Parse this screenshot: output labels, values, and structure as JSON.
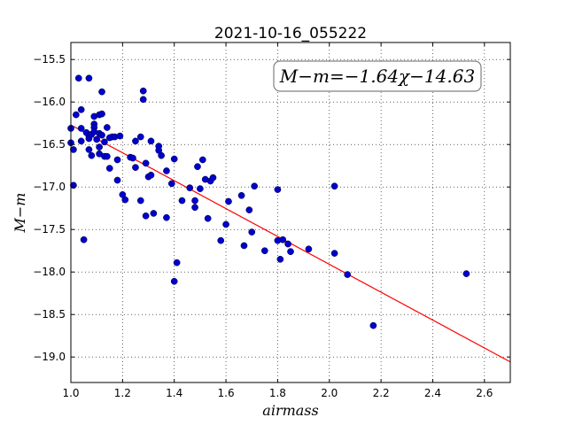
{
  "chart_data": {
    "type": "scatter",
    "title": "2021-10-16_055222",
    "xlabel": "airmass",
    "ylabel": "M−m",
    "xlim": [
      1.0,
      2.7
    ],
    "ylim": [
      -19.3,
      -15.3
    ],
    "y_inverted": true,
    "grid": true,
    "grid_style": "dotted",
    "xticks": [
      1.0,
      1.2,
      1.4,
      1.6,
      1.8,
      2.0,
      2.2,
      2.4,
      2.6
    ],
    "xtick_labels": [
      "1.0",
      "1.2",
      "1.4",
      "1.6",
      "1.8",
      "2.0",
      "2.2",
      "2.4",
      "2.6"
    ],
    "yticks": [
      -15.5,
      -16.0,
      -16.5,
      -17.0,
      -17.5,
      -18.0,
      -18.5,
      -19.0
    ],
    "ytick_labels": [
      "−15.5",
      "−16.0",
      "−16.5",
      "−17.0",
      "−17.5",
      "−18.0",
      "−18.5",
      "−19.0"
    ],
    "annotation": "M−m=−1.64χ−14.63",
    "fit": {
      "slope": -1.64,
      "intercept": -14.63,
      "color": "#ff0000"
    },
    "point_color": "#0000cc",
    "points": [
      [
        1.0,
        -16.31
      ],
      [
        1.0,
        -16.48
      ],
      [
        1.01,
        -16.56
      ],
      [
        1.01,
        -16.98
      ],
      [
        1.02,
        -16.15
      ],
      [
        1.03,
        -15.72
      ],
      [
        1.04,
        -16.09
      ],
      [
        1.04,
        -16.31
      ],
      [
        1.04,
        -16.46
      ],
      [
        1.05,
        -17.62
      ],
      [
        1.06,
        -16.36
      ],
      [
        1.07,
        -15.72
      ],
      [
        1.07,
        -16.4
      ],
      [
        1.07,
        -16.43
      ],
      [
        1.07,
        -16.56
      ],
      [
        1.08,
        -16.38
      ],
      [
        1.08,
        -16.63
      ],
      [
        1.09,
        -16.17
      ],
      [
        1.09,
        -16.26
      ],
      [
        1.09,
        -16.3
      ],
      [
        1.09,
        -16.35
      ],
      [
        1.1,
        -16.44
      ],
      [
        1.11,
        -16.37
      ],
      [
        1.11,
        -16.53
      ],
      [
        1.11,
        -16.61
      ],
      [
        1.11,
        -16.15
      ],
      [
        1.12,
        -15.88
      ],
      [
        1.12,
        -16.39
      ],
      [
        1.12,
        -16.14
      ],
      [
        1.13,
        -16.47
      ],
      [
        1.13,
        -16.64
      ],
      [
        1.14,
        -16.3
      ],
      [
        1.14,
        -16.64
      ],
      [
        1.15,
        -16.42
      ],
      [
        1.15,
        -16.78
      ],
      [
        1.16,
        -16.41
      ],
      [
        1.17,
        -16.41
      ],
      [
        1.18,
        -16.92
      ],
      [
        1.18,
        -16.68
      ],
      [
        1.19,
        -16.4
      ],
      [
        1.2,
        -17.09
      ],
      [
        1.21,
        -17.15
      ],
      [
        1.23,
        -16.65
      ],
      [
        1.24,
        -16.66
      ],
      [
        1.25,
        -16.46
      ],
      [
        1.25,
        -16.77
      ],
      [
        1.27,
        -17.16
      ],
      [
        1.27,
        -16.41
      ],
      [
        1.28,
        -15.87
      ],
      [
        1.28,
        -15.97
      ],
      [
        1.29,
        -16.72
      ],
      [
        1.29,
        -17.34
      ],
      [
        1.3,
        -16.88
      ],
      [
        1.31,
        -16.46
      ],
      [
        1.31,
        -16.86
      ],
      [
        1.32,
        -17.31
      ],
      [
        1.34,
        -16.52
      ],
      [
        1.34,
        -16.57
      ],
      [
        1.35,
        -16.63
      ],
      [
        1.37,
        -17.36
      ],
      [
        1.37,
        -16.81
      ],
      [
        1.39,
        -16.96
      ],
      [
        1.4,
        -16.67
      ],
      [
        1.4,
        -18.11
      ],
      [
        1.41,
        -17.89
      ],
      [
        1.43,
        -17.16
      ],
      [
        1.46,
        -17.01
      ],
      [
        1.48,
        -17.16
      ],
      [
        1.48,
        -17.24
      ],
      [
        1.49,
        -16.76
      ],
      [
        1.5,
        -17.02
      ],
      [
        1.51,
        -16.68
      ],
      [
        1.52,
        -16.91
      ],
      [
        1.53,
        -17.37
      ],
      [
        1.54,
        -16.93
      ],
      [
        1.55,
        -16.89
      ],
      [
        1.58,
        -17.63
      ],
      [
        1.6,
        -17.44
      ],
      [
        1.61,
        -17.17
      ],
      [
        1.66,
        -17.1
      ],
      [
        1.67,
        -17.69
      ],
      [
        1.69,
        -17.27
      ],
      [
        1.7,
        -17.53
      ],
      [
        1.71,
        -16.99
      ],
      [
        1.75,
        -17.75
      ],
      [
        1.8,
        -17.63
      ],
      [
        1.8,
        -17.03
      ],
      [
        1.81,
        -17.85
      ],
      [
        1.82,
        -17.62
      ],
      [
        1.84,
        -17.67
      ],
      [
        1.85,
        -17.76
      ],
      [
        1.92,
        -17.73
      ],
      [
        2.02,
        -16.99
      ],
      [
        2.02,
        -17.78
      ],
      [
        2.07,
        -18.03
      ],
      [
        2.17,
        -18.63
      ],
      [
        2.53,
        -18.02
      ]
    ]
  }
}
